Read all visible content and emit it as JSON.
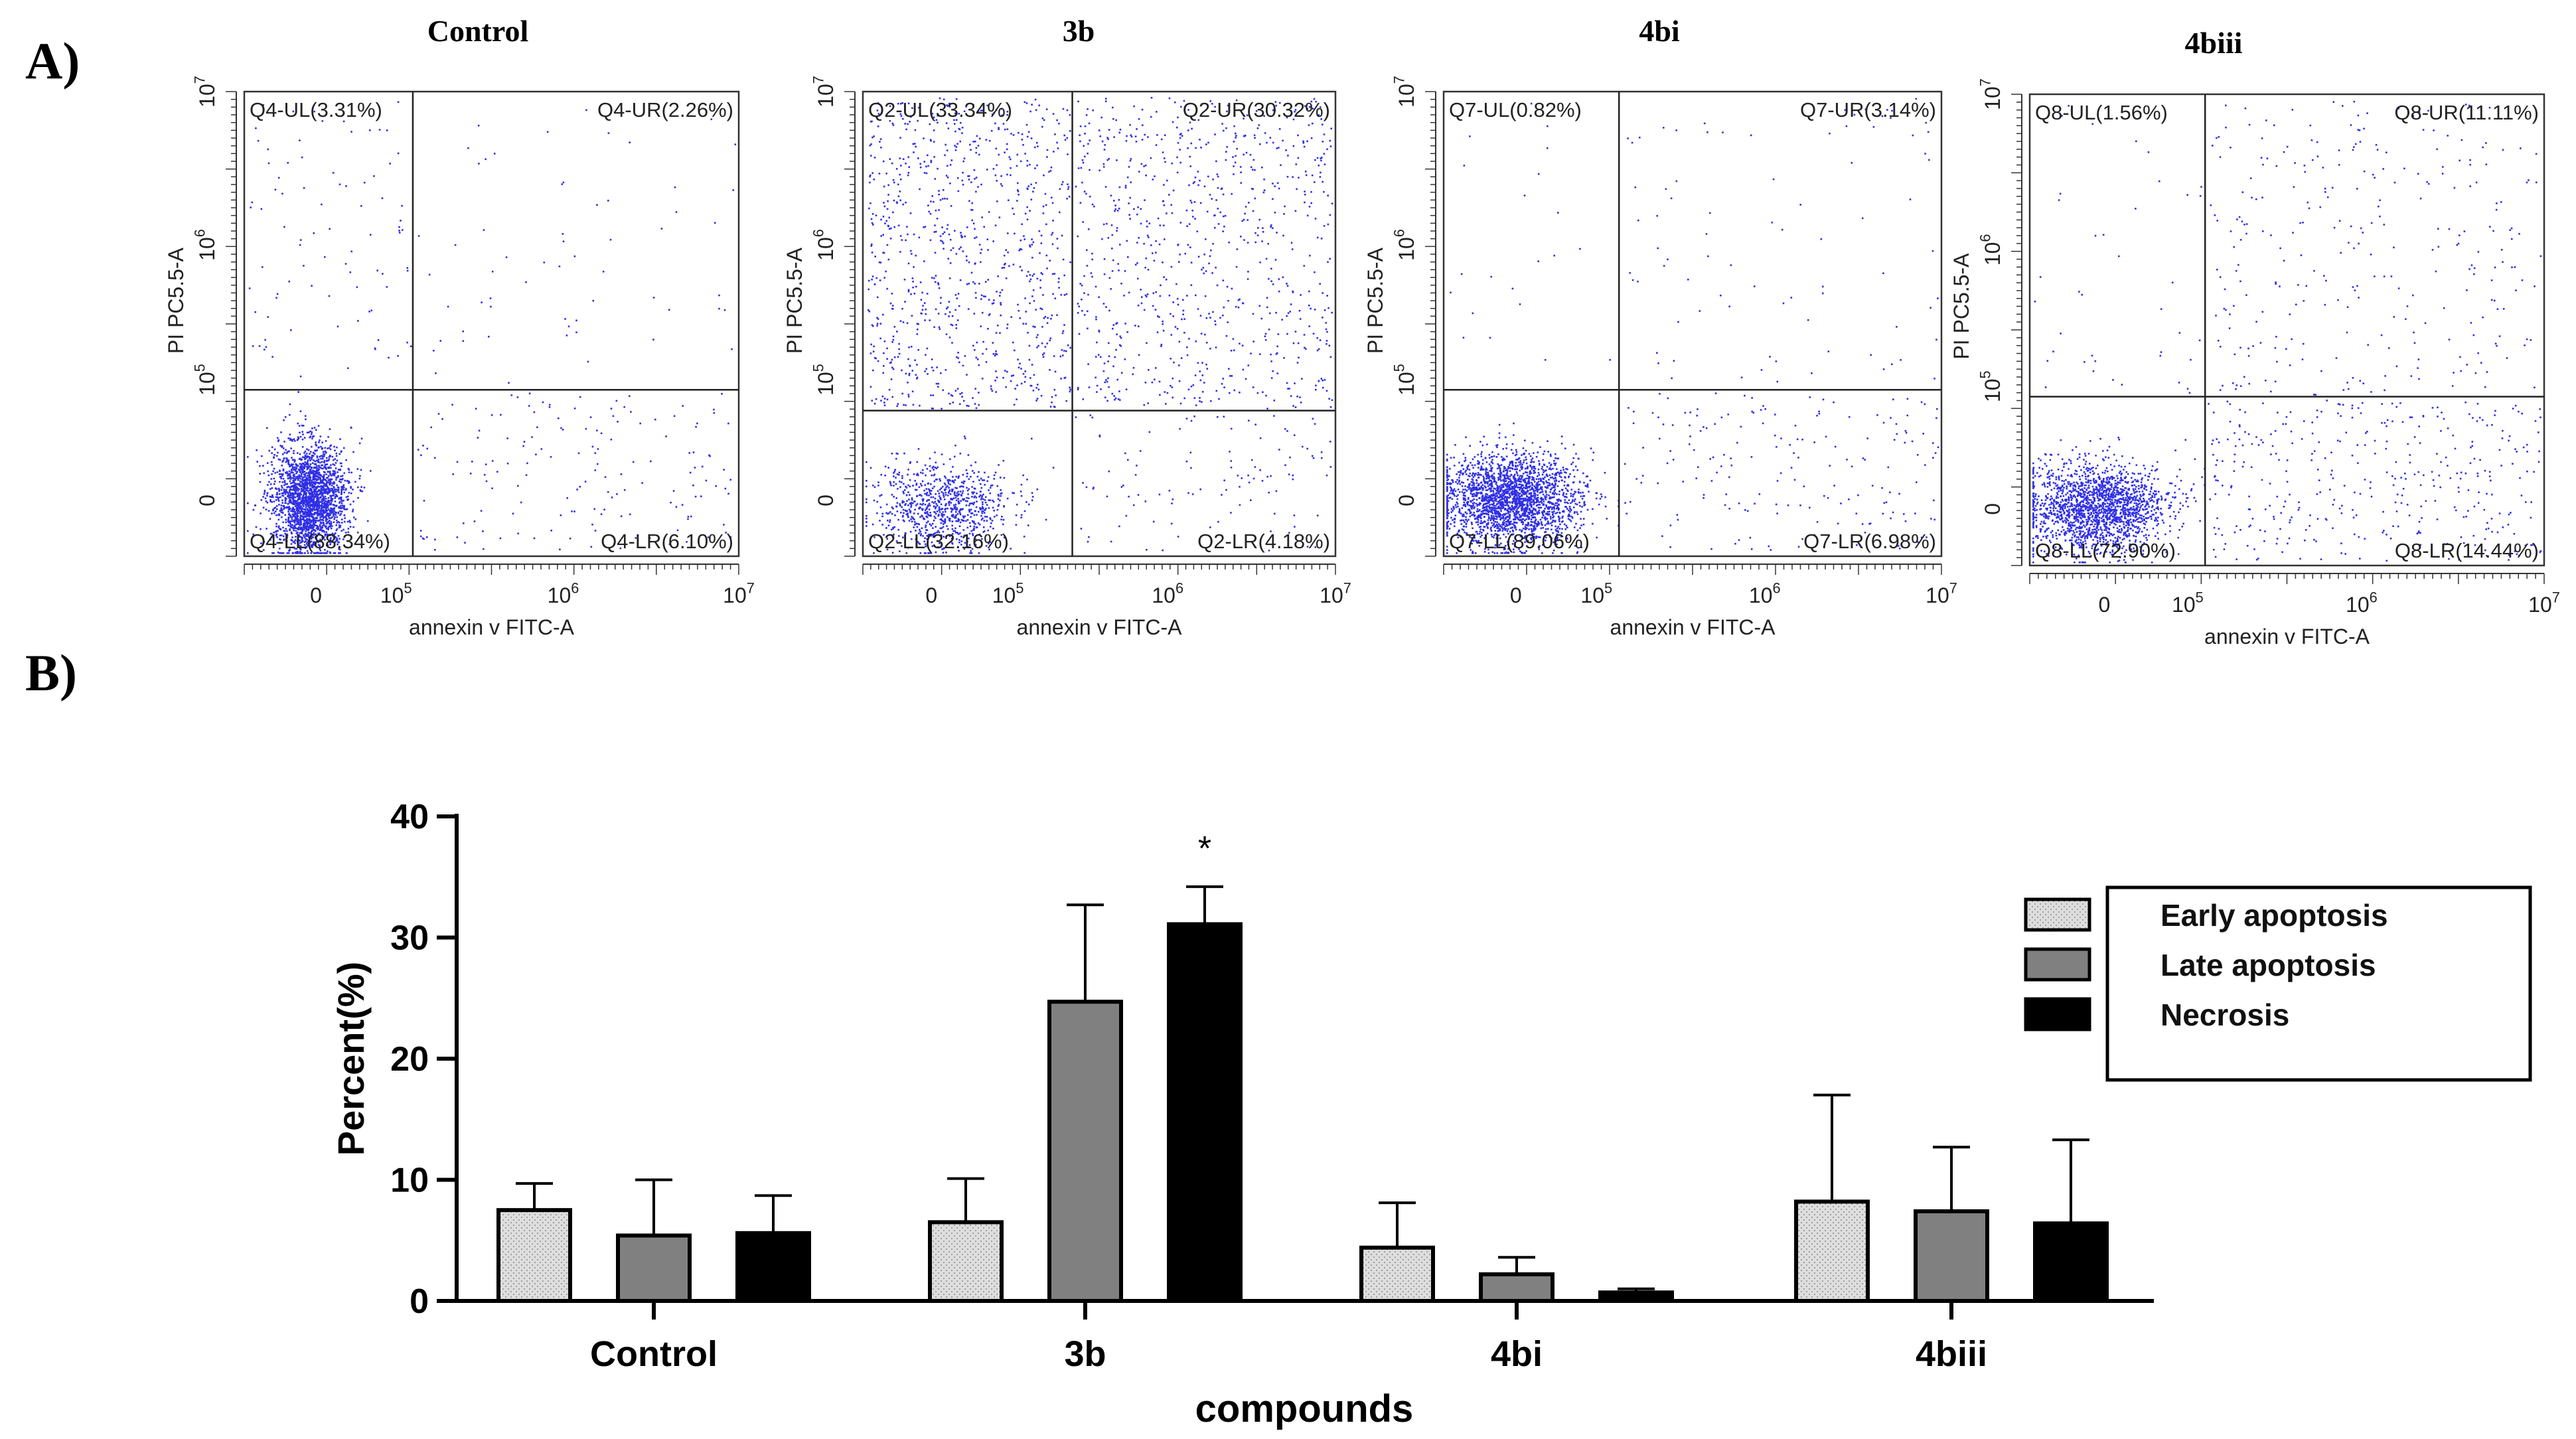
{
  "panel_labels": {
    "a": "A)",
    "b": "B)"
  },
  "flow_common": {
    "xlabel": "annexin v FITC-A",
    "ylabel": "PI PC5.5-A",
    "x_ticks": [
      {
        "base": "0",
        "exp": ""
      },
      {
        "base": "10",
        "exp": "5"
      },
      {
        "base": "10",
        "exp": "6"
      },
      {
        "base": "10",
        "exp": "7"
      }
    ],
    "y_ticks": [
      {
        "base": "0",
        "exp": ""
      },
      {
        "base": "10",
        "exp": "5"
      },
      {
        "base": "10",
        "exp": "6"
      },
      {
        "base": "10",
        "exp": "7"
      }
    ],
    "dot_color": "#2f2fe6"
  },
  "chart_data": [
    {
      "type": "scatter",
      "title": "Control",
      "xlabel": "annexin v FITC-A",
      "ylabel": "PI PC5.5-A",
      "xscale": "biexponential",
      "yscale": "biexponential",
      "gate_x": 1.5,
      "gate_y": 1.2,
      "quadrants": {
        "UL": "Q4-UL(3.31%)",
        "UR": "Q4-UR(2.26%)",
        "LL": "Q4-LL(88.34%)",
        "LR": "Q4-LR(6.10%)"
      },
      "percentages": {
        "UL": 3.31,
        "UR": 2.26,
        "LL": 88.34,
        "LR": 6.1
      },
      "population_center": [
        0.55,
        0.7
      ]
    },
    {
      "type": "scatter",
      "title": "3b",
      "xlabel": "annexin v FITC-A",
      "ylabel": "PI PC5.5-A",
      "xscale": "biexponential",
      "yscale": "biexponential",
      "gate_x": 1.95,
      "gate_y": 1.05,
      "quadrants": {
        "UL": "Q2-UL(33.34%)",
        "UR": "Q2-UR(30.32%)",
        "LL": "Q2-LL(32.16%)",
        "LR": "Q2-LR(4.18%)"
      },
      "percentages": {
        "UL": 33.34,
        "UR": 30.32,
        "LL": 32.16,
        "LR": 4.18
      },
      "population_center": [
        0.6,
        0.6
      ]
    },
    {
      "type": "scatter",
      "title": "4bi",
      "xlabel": "annexin v FITC-A",
      "ylabel": "PI PC5.5-A",
      "xscale": "biexponential",
      "yscale": "biexponential",
      "gate_x": 1.55,
      "gate_y": 1.2,
      "quadrants": {
        "UL": "Q7-UL(0.82%)",
        "UR": "Q7-UR(3.14%)",
        "LL": "Q7-LL(89.06%)",
        "LR": "Q7-LR(6.98%)"
      },
      "percentages": {
        "UL": 0.82,
        "UR": 3.14,
        "LL": 89.06,
        "LR": 6.98
      },
      "population_center": [
        0.55,
        0.6
      ]
    },
    {
      "type": "scatter",
      "title": "4biii",
      "xlabel": "annexin v FITC-A",
      "ylabel": "PI PC5.5-A",
      "xscale": "biexponential",
      "yscale": "biexponential",
      "gate_x": 1.5,
      "gate_y": 1.2,
      "quadrants": {
        "UL": "Q8-UL(1.56%)",
        "UR": "Q8-UR(11.11%)",
        "LL": "Q8-LL(72.90%)",
        "LR": "Q8-LR(14.44%)"
      },
      "percentages": {
        "UL": 1.56,
        "UR": 11.11,
        "LL": 72.9,
        "LR": 14.44
      },
      "population_center": [
        0.65,
        0.65
      ]
    },
    {
      "type": "bar",
      "title": "",
      "xlabel": "compounds",
      "ylabel": "Percent(%)",
      "ylim": [
        0,
        40
      ],
      "yticks": [
        0,
        10,
        20,
        30,
        40
      ],
      "categories": [
        "Control",
        "3b",
        "4bi",
        "4biii"
      ],
      "series": [
        {
          "name": "Early apoptosis",
          "color": "#d9d9d9",
          "values": [
            7.5,
            6.5,
            4.4,
            8.2
          ],
          "errors": [
            2.2,
            3.6,
            3.7,
            8.8
          ]
        },
        {
          "name": "Late apoptosis",
          "color": "#808080",
          "values": [
            5.4,
            24.7,
            2.2,
            7.4
          ],
          "errors": [
            4.6,
            8.0,
            1.4,
            5.3
          ]
        },
        {
          "name": "Necrosis",
          "color": "#000000",
          "values": [
            5.6,
            31.1,
            0.7,
            6.4
          ],
          "errors": [
            3.1,
            3.1,
            0.3,
            6.9
          ]
        }
      ],
      "annotations": [
        {
          "category": "3b",
          "series": "Necrosis",
          "text": "*"
        }
      ],
      "legend_position": "right"
    }
  ]
}
